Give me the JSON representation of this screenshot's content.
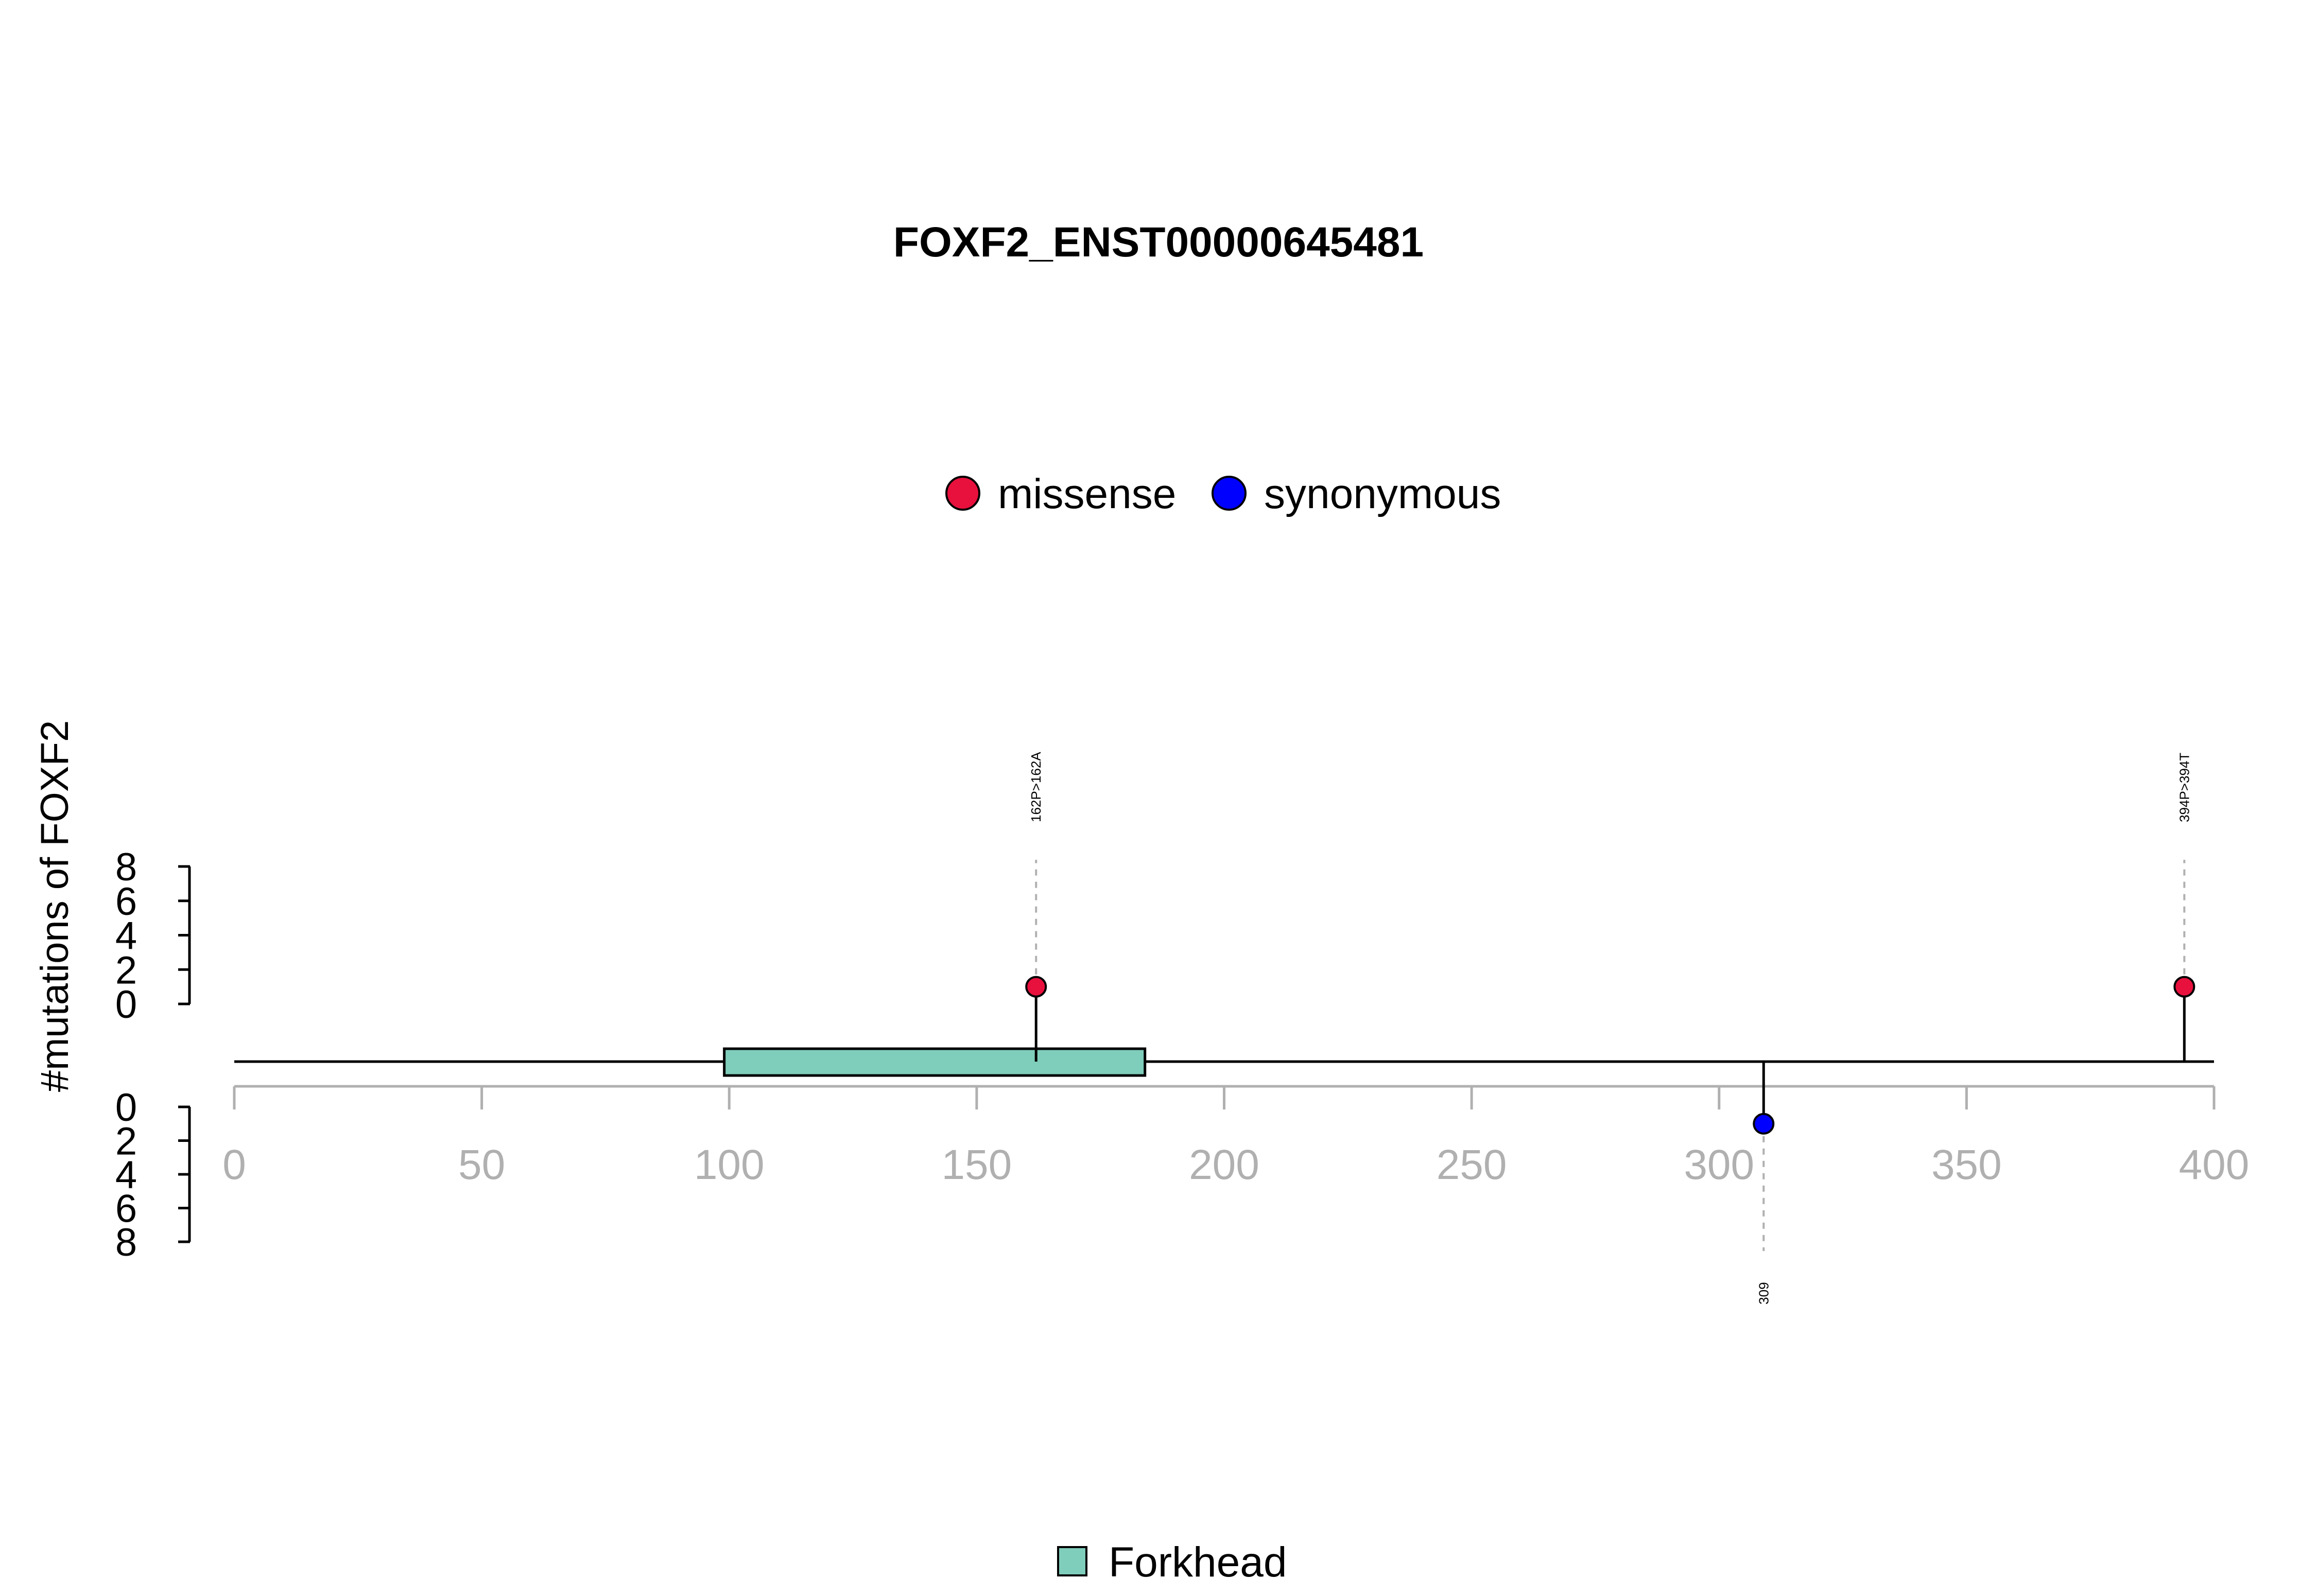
{
  "chart_data": {
    "type": "lollipop",
    "title": "FOXF2_ENST00000645481",
    "ylabel": "#mutations of FOXF2",
    "xlim": [
      0,
      400
    ],
    "x_ticks": [
      "0",
      "50",
      "100",
      "150",
      "200",
      "250",
      "300",
      "350",
      "400"
    ],
    "x_tick_values": [
      0,
      50,
      100,
      150,
      200,
      250,
      300,
      350,
      400
    ],
    "y_ticks": [
      "0",
      "2",
      "4",
      "6",
      "8"
    ],
    "y_tick_values": [
      0,
      2,
      4,
      6,
      8
    ],
    "ylim": [
      0,
      8
    ],
    "protein_length": 400,
    "legend_mutations": [
      {
        "name": "missense",
        "color": "#E8103D"
      },
      {
        "name": "synonymous",
        "color": "#0000FF"
      }
    ],
    "mutations": [
      {
        "position": 162,
        "count": 1,
        "type": "missense",
        "label": "162P>162A",
        "side": "top",
        "color": "#E8103D"
      },
      {
        "position": 394,
        "count": 1,
        "type": "missense",
        "label": "394P>394T",
        "side": "top",
        "color": "#E8103D"
      },
      {
        "position": 309,
        "count": 1,
        "type": "synonymous",
        "label": "309",
        "side": "bottom",
        "color": "#0000FF"
      }
    ],
    "domains": [
      {
        "name": "Forkhead",
        "start": 99,
        "end": 184,
        "color": "#7FCDBB"
      }
    ],
    "legend_domains": [
      {
        "name": "Forkhead",
        "color": "#7FCDBB"
      }
    ]
  }
}
